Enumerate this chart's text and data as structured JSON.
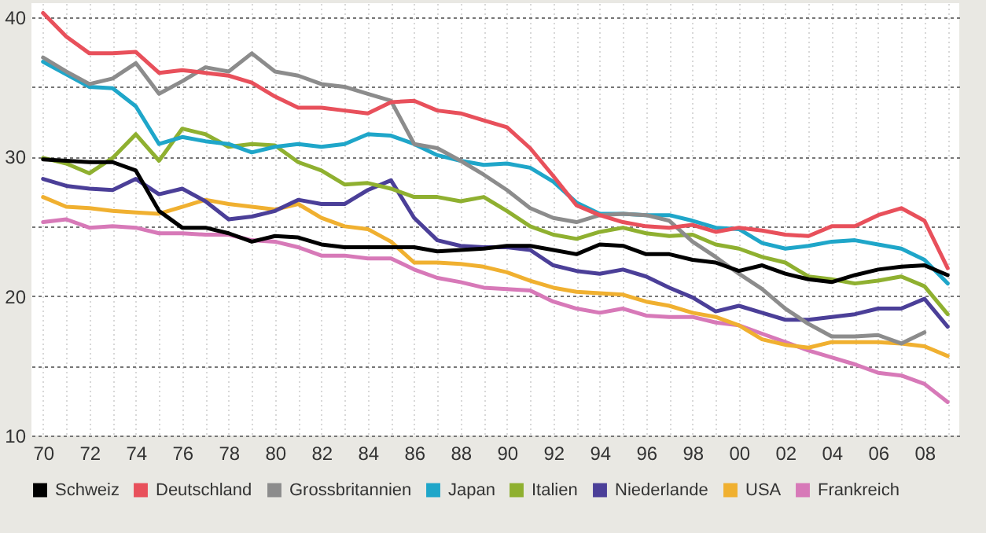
{
  "chart_data": {
    "type": "line",
    "x": [
      1970,
      1971,
      1972,
      1973,
      1974,
      1975,
      1976,
      1977,
      1978,
      1979,
      1980,
      1981,
      1982,
      1983,
      1984,
      1985,
      1986,
      1987,
      1988,
      1989,
      1990,
      1991,
      1992,
      1993,
      1994,
      1995,
      1996,
      1997,
      1998,
      1999,
      2000,
      2001,
      2002,
      2003,
      2004,
      2005,
      2006,
      2007,
      2008,
      2009
    ],
    "series": [
      {
        "name": "Schweiz",
        "color": "#000000",
        "values": [
          29.8,
          29.7,
          29.6,
          29.6,
          29.0,
          26.1,
          24.9,
          24.9,
          24.5,
          23.9,
          24.3,
          24.2,
          23.7,
          23.5,
          23.5,
          23.5,
          23.5,
          23.2,
          23.3,
          23.4,
          23.6,
          23.6,
          23.3,
          23.0,
          23.7,
          23.6,
          23.0,
          23.0,
          22.6,
          22.4,
          21.8,
          22.2,
          21.6,
          21.2,
          21.0,
          21.5,
          21.9,
          22.1,
          22.2,
          21.5
        ]
      },
      {
        "name": "Deutschland",
        "color": "#e8505b",
        "values": [
          40.3,
          38.6,
          37.4,
          37.4,
          37.5,
          36.0,
          36.2,
          36.0,
          35.8,
          35.3,
          34.3,
          33.5,
          33.5,
          33.3,
          33.1,
          33.9,
          34.0,
          33.3,
          33.1,
          32.6,
          32.1,
          30.6,
          28.6,
          26.5,
          25.8,
          25.3,
          25.0,
          24.9,
          25.1,
          24.6,
          24.9,
          24.7,
          24.4,
          24.3,
          25.0,
          25.0,
          25.8,
          26.3,
          25.4,
          22.0
        ]
      },
      {
        "name": "Grossbritannien",
        "color": "#8c8c8c",
        "values": [
          37.1,
          36.1,
          35.2,
          35.6,
          36.7,
          34.5,
          35.4,
          36.4,
          36.1,
          37.4,
          36.1,
          35.8,
          35.2,
          35.0,
          34.5,
          34.0,
          30.9,
          30.6,
          29.7,
          28.7,
          27.6,
          26.3,
          25.6,
          25.3,
          25.8,
          25.9,
          25.8,
          25.4,
          23.9,
          22.8,
          21.6,
          20.5,
          19.1,
          18.0,
          17.1,
          17.1,
          17.2,
          16.6,
          17.4,
          null
        ]
      },
      {
        "name": "Japan",
        "color": "#1fa6c9",
        "values": [
          36.8,
          35.9,
          35.0,
          34.9,
          33.6,
          30.9,
          31.4,
          31.1,
          30.9,
          30.3,
          30.7,
          30.9,
          30.7,
          30.9,
          31.6,
          31.5,
          30.9,
          30.1,
          29.7,
          29.4,
          29.5,
          29.2,
          28.2,
          26.7,
          25.9,
          25.9,
          25.8,
          25.8,
          25.4,
          24.9,
          24.8,
          23.8,
          23.4,
          23.6,
          23.9,
          24.0,
          23.7,
          23.4,
          22.6,
          20.9
        ]
      },
      {
        "name": "Italien",
        "color": "#8fb030",
        "values": [
          29.9,
          29.5,
          28.8,
          29.9,
          31.6,
          29.7,
          32.0,
          31.6,
          30.7,
          30.9,
          30.8,
          29.6,
          29.0,
          28.0,
          28.1,
          27.7,
          27.1,
          27.1,
          26.8,
          27.1,
          26.1,
          25.0,
          24.4,
          24.1,
          24.6,
          24.9,
          24.5,
          24.3,
          24.4,
          23.7,
          23.4,
          22.8,
          22.4,
          21.4,
          21.2,
          20.9,
          21.1,
          21.4,
          20.7,
          18.7
        ]
      },
      {
        "name": "Niederlande",
        "color": "#4b3f98",
        "values": [
          28.4,
          27.9,
          27.7,
          27.6,
          28.4,
          27.3,
          27.7,
          26.8,
          25.5,
          25.7,
          26.1,
          26.9,
          26.6,
          26.6,
          27.6,
          28.3,
          25.6,
          24.0,
          23.6,
          23.5,
          23.5,
          23.3,
          22.2,
          21.8,
          21.6,
          21.9,
          21.4,
          20.6,
          19.9,
          18.9,
          19.3,
          18.8,
          18.3,
          18.3,
          18.5,
          18.7,
          19.1,
          19.1,
          19.8,
          17.8
        ]
      },
      {
        "name": "USA",
        "color": "#f0b030",
        "values": [
          27.1,
          26.4,
          26.3,
          26.1,
          26.0,
          25.9,
          26.4,
          26.9,
          26.6,
          26.4,
          26.2,
          26.6,
          25.6,
          25.0,
          24.8,
          23.9,
          22.4,
          22.4,
          22.3,
          22.1,
          21.7,
          21.1,
          20.6,
          20.3,
          20.2,
          20.1,
          19.6,
          19.3,
          18.8,
          18.5,
          17.9,
          16.9,
          16.5,
          16.3,
          16.7,
          16.7,
          16.7,
          16.6,
          16.4,
          15.7
        ]
      },
      {
        "name": "Frankreich",
        "color": "#d779b8",
        "values": [
          25.3,
          25.5,
          24.9,
          25.0,
          24.9,
          24.5,
          24.5,
          24.4,
          24.4,
          24.0,
          23.9,
          23.5,
          22.9,
          22.9,
          22.7,
          22.7,
          21.9,
          21.3,
          21.0,
          20.6,
          20.5,
          20.4,
          19.6,
          19.1,
          18.8,
          19.1,
          18.6,
          18.5,
          18.5,
          18.1,
          17.9,
          17.3,
          16.7,
          16.1,
          15.6,
          15.1,
          14.5,
          14.3,
          13.7,
          12.4
        ]
      }
    ],
    "xlim": [
      1969.5,
      2009.5
    ],
    "xticks": [
      {
        "value": 1970,
        "label": "70"
      },
      {
        "value": 1971,
        "label": null
      },
      {
        "value": 1972,
        "label": "72"
      },
      {
        "value": 1973,
        "label": null
      },
      {
        "value": 1974,
        "label": "74"
      },
      {
        "value": 1975,
        "label": null
      },
      {
        "value": 1976,
        "label": "76"
      },
      {
        "value": 1977,
        "label": null
      },
      {
        "value": 1978,
        "label": "78"
      },
      {
        "value": 1979,
        "label": null
      },
      {
        "value": 1980,
        "label": "80"
      },
      {
        "value": 1981,
        "label": null
      },
      {
        "value": 1982,
        "label": "82"
      },
      {
        "value": 1983,
        "label": null
      },
      {
        "value": 1984,
        "label": "84"
      },
      {
        "value": 1985,
        "label": null
      },
      {
        "value": 1986,
        "label": "86"
      },
      {
        "value": 1987,
        "label": null
      },
      {
        "value": 1988,
        "label": "88"
      },
      {
        "value": 1989,
        "label": null
      },
      {
        "value": 1990,
        "label": "90"
      },
      {
        "value": 1991,
        "label": null
      },
      {
        "value": 1992,
        "label": "92"
      },
      {
        "value": 1993,
        "label": null
      },
      {
        "value": 1994,
        "label": "94"
      },
      {
        "value": 1995,
        "label": null
      },
      {
        "value": 1996,
        "label": "96"
      },
      {
        "value": 1997,
        "label": null
      },
      {
        "value": 1998,
        "label": "98"
      },
      {
        "value": 1999,
        "label": null
      },
      {
        "value": 2000,
        "label": "00"
      },
      {
        "value": 2001,
        "label": null
      },
      {
        "value": 2002,
        "label": "02"
      },
      {
        "value": 2003,
        "label": null
      },
      {
        "value": 2004,
        "label": "04"
      },
      {
        "value": 2005,
        "label": null
      },
      {
        "value": 2006,
        "label": "06"
      },
      {
        "value": 2007,
        "label": null
      },
      {
        "value": 2008,
        "label": "08"
      },
      {
        "value": 2009,
        "label": null
      }
    ],
    "ylim": [
      10,
      41
    ],
    "yticks": [
      10,
      {
        "value": 15,
        "label": null
      },
      20,
      {
        "value": 25,
        "label": null
      },
      30,
      {
        "value": 35,
        "label": null
      },
      40
    ],
    "grid": true,
    "legend": "bottom",
    "marker": "none",
    "line_style": "solid"
  }
}
